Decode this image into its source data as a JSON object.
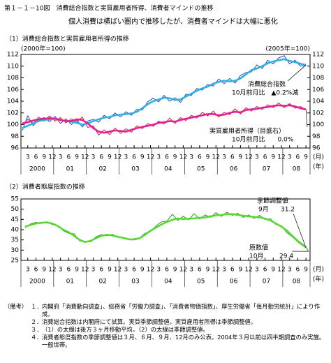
{
  "title": "第１－１－10図　消費総合指数と実質雇用者所得、消費者マインドの推移",
  "subtitle": "個人消費は横ばい圏内で推移したが、消費者マインドは大幅に悪化",
  "chart_data": [
    {
      "type": "line",
      "title": "（1）消費総合指数と実質雇用者所得の推移",
      "ylabel": "(2000年=100)",
      "y2label": "(2005年=100)",
      "x_unit": "(月)",
      "year_unit": "(年)",
      "x": [
        "2000-01",
        "2000-03",
        "2000-05",
        "2000-07",
        "2000-09",
        "2000-11",
        "2001-01",
        "2001-03",
        "2001-05",
        "2001-07",
        "2001-09",
        "2001-11",
        "2002-01",
        "2002-03",
        "2002-05",
        "2002-07",
        "2002-09",
        "2002-11",
        "2003-01",
        "2003-03",
        "2003-05",
        "2003-07",
        "2003-09",
        "2003-11",
        "2004-01",
        "2004-03",
        "2004-05",
        "2004-07",
        "2004-09",
        "2004-11",
        "2005-01",
        "2005-03",
        "2005-05",
        "2005-07",
        "2005-09",
        "2005-11",
        "2006-01",
        "2006-03",
        "2006-05",
        "2006-07",
        "2006-09",
        "2006-11",
        "2007-01",
        "2007-03",
        "2007-05",
        "2007-07",
        "2007-09",
        "2007-11",
        "2008-01",
        "2008-03",
        "2008-05",
        "2008-07",
        "2008-09"
      ],
      "series": [
        {
          "color": "#2a47c4",
          "width": 1,
          "values": [
            99.0,
            101.5,
            99.8,
            100.9,
            101.2,
            100.5,
            101.4,
            100.2,
            101.0,
            100.0,
            100.8,
            99.6,
            100.6,
            100.9,
            100.4,
            101.6,
            101.0,
            102.0,
            101.3,
            102.2,
            101.6,
            102.6,
            102.5,
            103.9,
            104.5,
            103.9,
            105.0,
            104.0,
            104.6,
            103.8,
            105.2,
            105.0,
            106.2,
            105.9,
            106.9,
            106.6,
            107.8,
            107.0,
            107.9,
            107.1,
            108.4,
            108.9,
            109.0,
            110.2,
            109.6,
            111.0,
            110.4,
            111.4,
            111.8,
            110.4,
            111.0,
            110.0,
            110.1
          ]
        },
        {
          "color": "#e02020",
          "width": 1,
          "axis": "y2",
          "values": [
            100.0,
            100.9,
            100.2,
            101.3,
            100.6,
            101.5,
            100.6,
            101.2,
            100.3,
            101.0,
            100.5,
            101.3,
            99.5,
            99.8,
            98.2,
            99.1,
            98.3,
            99.4,
            98.5,
            99.3,
            98.7,
            99.8,
            99.3,
            100.2,
            99.7,
            100.6,
            100.1,
            101.1,
            100.2,
            101.2,
            100.7,
            101.6,
            101.1,
            102.1,
            101.5,
            102.3,
            101.3,
            102.1,
            101.7,
            102.7,
            101.8,
            102.9,
            102.3,
            103.1,
            102.6,
            103.4,
            102.9,
            103.7,
            102.9,
            103.6,
            102.8,
            103.1,
            102.5
          ]
        },
        {
          "color": "#2fb0e0",
          "width": 2.6,
          "values": [
            99.4,
            99.8,
            100.2,
            100.6,
            100.8,
            100.9,
            101.0,
            100.8,
            100.6,
            100.5,
            100.3,
            100.0,
            100.2,
            100.6,
            100.9,
            101.2,
            101.3,
            101.6,
            101.7,
            101.8,
            101.9,
            102.2,
            102.8,
            103.5,
            104.0,
            104.3,
            104.6,
            104.5,
            104.2,
            104.3,
            104.8,
            105.3,
            105.8,
            106.2,
            106.5,
            107.0,
            107.3,
            107.5,
            107.4,
            107.5,
            107.9,
            108.6,
            109.3,
            109.6,
            110.0,
            110.5,
            110.8,
            111.0,
            111.2,
            110.9,
            110.7,
            110.4,
            110.2
          ]
        },
        {
          "color": "#e0209a",
          "width": 2.6,
          "axis": "y2",
          "values": [
            100.2,
            100.4,
            100.7,
            100.9,
            101.0,
            101.1,
            101.0,
            100.8,
            100.6,
            100.6,
            100.9,
            100.8,
            100.2,
            99.4,
            98.8,
            98.6,
            98.8,
            99.0,
            98.9,
            98.8,
            99.1,
            99.4,
            99.6,
            99.8,
            100.0,
            100.3,
            100.4,
            100.6,
            100.5,
            100.8,
            101.0,
            101.2,
            101.4,
            101.6,
            101.8,
            101.8,
            101.6,
            101.7,
            102.0,
            102.2,
            102.1,
            102.5,
            102.6,
            102.7,
            102.9,
            103.0,
            103.2,
            103.3,
            103.2,
            103.3,
            103.1,
            102.8,
            102.6
          ]
        }
      ],
      "xlim": [
        "2000-01",
        "2008-10"
      ],
      "xticks": [
        {
          "value": "2000-03",
          "label": "3"
        },
        {
          "value": "2000-06",
          "label": "6"
        },
        {
          "value": "2000-09",
          "label": "9"
        },
        {
          "value": "2000-12",
          "label": "12"
        },
        {
          "value": "2001-03",
          "label": "3"
        },
        {
          "value": "2001-06",
          "label": "6"
        },
        {
          "value": "2001-09",
          "label": "9"
        },
        {
          "value": "2001-12",
          "label": "12"
        },
        {
          "value": "2002-03",
          "label": "3"
        },
        {
          "value": "2002-06",
          "label": "6"
        },
        {
          "value": "2002-09",
          "label": "9"
        },
        {
          "value": "2002-12",
          "label": "12"
        },
        {
          "value": "2003-03",
          "label": "3"
        },
        {
          "value": "2003-06",
          "label": "6"
        },
        {
          "value": "2003-09",
          "label": "9"
        },
        {
          "value": "2003-12",
          "label": "12"
        },
        {
          "value": "2004-03",
          "label": "3"
        },
        {
          "value": "2004-06",
          "label": "6"
        },
        {
          "value": "2004-09",
          "label": "9"
        },
        {
          "value": "2004-12",
          "label": "12"
        },
        {
          "value": "2005-03",
          "label": "3"
        },
        {
          "value": "2005-06",
          "label": "6"
        },
        {
          "value": "2005-09",
          "label": "9"
        },
        {
          "value": "2005-12",
          "label": "12"
        },
        {
          "value": "2006-03",
          "label": "3"
        },
        {
          "value": "2006-06",
          "label": "6"
        },
        {
          "value": "2006-09",
          "label": "9"
        },
        {
          "value": "2006-12",
          "label": "12"
        },
        {
          "value": "2007-03",
          "label": "3"
        },
        {
          "value": "2007-06",
          "label": "6"
        },
        {
          "value": "2007-09",
          "label": "9"
        },
        {
          "value": "2007-12",
          "label": "12"
        },
        {
          "value": "2008-03",
          "label": "3"
        },
        {
          "value": "2008-06",
          "label": "6"
        },
        {
          "value": "2008-09",
          "label": "9"
        }
      ],
      "years": [
        "2000",
        "01",
        "02",
        "03",
        "04",
        "05",
        "06",
        "07",
        "08"
      ],
      "ylim": [
        96,
        112
      ],
      "yticks": [
        96,
        98,
        100,
        102,
        104,
        106,
        108,
        110,
        112
      ],
      "y2lim": [
        96,
        112
      ],
      "y2ticks": [
        96,
        98,
        100,
        102,
        104,
        106,
        108,
        110,
        112
      ],
      "annotations": [
        "消費総合指数",
        "10月前月比　▲0.2%減",
        "実質雇用者所得（目盛右）",
        "10月前月比　　0.0%"
      ]
    },
    {
      "type": "line",
      "title": "（2）消費者態度指数の推移",
      "x_unit": "(月)",
      "year_unit": "(年)",
      "x": [
        "2000-02",
        "2000-04",
        "2000-06",
        "2000-08",
        "2000-10",
        "2000-12",
        "2001-02",
        "2001-04",
        "2001-06",
        "2001-08",
        "2001-10",
        "2001-12",
        "2002-02",
        "2002-04",
        "2002-06",
        "2002-08",
        "2002-10",
        "2002-12",
        "2003-02",
        "2003-04",
        "2003-06",
        "2003-08",
        "2003-10",
        "2003-12",
        "2004-02",
        "2004-04",
        "2004-06",
        "2004-08",
        "2004-10",
        "2004-12",
        "2005-02",
        "2005-04",
        "2005-06",
        "2005-08",
        "2005-10",
        "2005-12",
        "2006-02",
        "2006-04",
        "2006-06",
        "2006-08",
        "2006-10",
        "2006-12",
        "2007-02",
        "2007-04",
        "2007-06",
        "2007-08",
        "2007-10",
        "2007-12",
        "2008-02",
        "2008-04",
        "2008-06",
        "2008-08",
        "2008-09",
        "2008-10"
      ],
      "series": [
        {
          "color": "#2a9a2a",
          "width": 1,
          "values": [
            41.0,
            42.8,
            43.6,
            43.0,
            43.9,
            42.5,
            42.0,
            39.5,
            38.2,
            38.0,
            34.5,
            34.2,
            34.0,
            36.5,
            37.6,
            37.0,
            37.8,
            36.2,
            36.3,
            35.0,
            35.6,
            36.0,
            38.2,
            39.0,
            41.8,
            43.8,
            44.2,
            47.5,
            44.5,
            46.5,
            44.8,
            47.8,
            45.2,
            47.2,
            46.0,
            48.3,
            46.5,
            48.5,
            47.0,
            48.0,
            46.0,
            47.2,
            45.5,
            47.0,
            45.0,
            45.3,
            42.5,
            42.0,
            38.5,
            36.5,
            34.0,
            32.0,
            31.5,
            29.4
          ]
        },
        {
          "color": "#5ad832",
          "width": 2.6,
          "values": [
            41.5,
            42.3,
            43.0,
            43.4,
            43.5,
            43.0,
            41.8,
            40.0,
            38.8,
            37.0,
            35.0,
            34.0,
            34.5,
            35.8,
            37.0,
            37.5,
            37.2,
            36.5,
            36.0,
            35.3,
            35.2,
            35.8,
            37.5,
            39.5,
            41.0,
            42.5,
            43.8,
            44.8,
            45.5,
            45.2,
            45.4,
            45.5,
            45.8,
            46.0,
            46.5,
            47.0,
            47.2,
            47.5,
            47.6,
            47.2,
            46.8,
            46.5,
            46.2,
            46.0,
            45.4,
            44.5,
            43.0,
            41.5,
            39.5,
            37.0,
            34.5,
            32.5,
            31.2,
            null
          ]
        }
      ],
      "xlim": [
        "2000-01",
        "2008-10"
      ],
      "xticks": [
        {
          "value": "2000-03",
          "label": "3"
        },
        {
          "value": "2000-06",
          "label": "6"
        },
        {
          "value": "2000-09",
          "label": "9"
        },
        {
          "value": "2000-12",
          "label": "12"
        },
        {
          "value": "2001-03",
          "label": "3"
        },
        {
          "value": "2001-06",
          "label": "6"
        },
        {
          "value": "2001-09",
          "label": "9"
        },
        {
          "value": "2001-12",
          "label": "12"
        },
        {
          "value": "2002-03",
          "label": "3"
        },
        {
          "value": "2002-06",
          "label": "6"
        },
        {
          "value": "2002-09",
          "label": "9"
        },
        {
          "value": "2002-12",
          "label": "12"
        },
        {
          "value": "2003-03",
          "label": "3"
        },
        {
          "value": "2003-06",
          "label": "6"
        },
        {
          "value": "2003-09",
          "label": "9"
        },
        {
          "value": "2003-12",
          "label": "12"
        },
        {
          "value": "2004-03",
          "label": "3"
        },
        {
          "value": "2004-06",
          "label": "6"
        },
        {
          "value": "2004-09",
          "label": "9"
        },
        {
          "value": "2004-12",
          "label": "12"
        },
        {
          "value": "2005-03",
          "label": "3"
        },
        {
          "value": "2005-06",
          "label": "6"
        },
        {
          "value": "2005-09",
          "label": "9"
        },
        {
          "value": "2005-12",
          "label": "12"
        },
        {
          "value": "2006-03",
          "label": "3"
        },
        {
          "value": "2006-06",
          "label": "6"
        },
        {
          "value": "2006-09",
          "label": "9"
        },
        {
          "value": "2006-12",
          "label": "12"
        },
        {
          "value": "2007-03",
          "label": "3"
        },
        {
          "value": "2007-06",
          "label": "6"
        },
        {
          "value": "2007-09",
          "label": "9"
        },
        {
          "value": "2007-12",
          "label": "12"
        },
        {
          "value": "2008-03",
          "label": "3"
        },
        {
          "value": "2008-06",
          "label": "6"
        },
        {
          "value": "2008-09",
          "label": "9"
        }
      ],
      "years": [
        "2000",
        "01",
        "02",
        "03",
        "04",
        "05",
        "06",
        "07",
        "08"
      ],
      "ylim": [
        25,
        55
      ],
      "yticks": [
        25,
        30,
        35,
        40,
        45,
        50,
        55
      ],
      "annotations": [
        "季節調整値",
        "9月",
        "原数値",
        "10月"
      ]
    }
  ],
  "notes": {
    "heading": "（備考）",
    "items": [
      {
        "num": "１．",
        "text": "内閣府「消費動向調査」、総務省「労働力調査」、「消費者物価指数」、厚生労働省「毎月勤労統計」により作成。"
      },
      {
        "num": "２．",
        "text": "消費総合指数は内閣府にて試算。実質季節調整値。実質雇用者所得は季節調整値。"
      },
      {
        "num": "３．",
        "text": "（1）の太線は後方３ヶ月移動平均。（2）の太線は季節調整値。"
      },
      {
        "num": "４．",
        "text": "消費者態度指数の季節調整値は３月、６月、９月、12月のみ公表。2004年３月以前は四半期調査のみ実施。一般世帯。"
      }
    ]
  }
}
